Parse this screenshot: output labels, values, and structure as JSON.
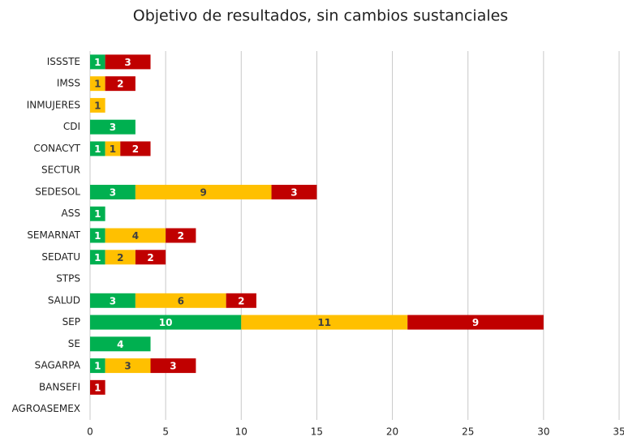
{
  "chart_data": {
    "type": "stacked-bar-horizontal",
    "title": "Objetivo de resultados, sin cambios sustanciales",
    "categories": [
      "ISSSTE",
      "IMSS",
      "INMUJERES",
      "CDI",
      "CONACYT",
      "SECTUR",
      "SEDESOL",
      "ASS",
      "SEMARNAT",
      "SEDATU",
      "STPS",
      "SALUD",
      "SEP",
      "SE",
      "SAGARPA",
      "BANSEFI",
      "AGROASEMEX"
    ],
    "series": [
      {
        "color": "#00b050",
        "values": [
          1,
          null,
          null,
          3,
          1,
          null,
          3,
          1,
          1,
          1,
          null,
          3,
          10,
          4,
          1,
          null,
          null
        ]
      },
      {
        "color": "#ffc000",
        "values": [
          null,
          1,
          1,
          null,
          1,
          null,
          9,
          null,
          4,
          2,
          null,
          6,
          11,
          null,
          3,
          null,
          null
        ]
      },
      {
        "color": "#c00000",
        "values": [
          3,
          2,
          null,
          null,
          2,
          null,
          3,
          null,
          2,
          2,
          null,
          2,
          9,
          null,
          3,
          1,
          null
        ]
      }
    ],
    "xlim": [
      0,
      35
    ],
    "xticks": [
      0,
      5,
      10,
      15,
      20,
      25,
      30,
      35
    ],
    "grid": true
  }
}
